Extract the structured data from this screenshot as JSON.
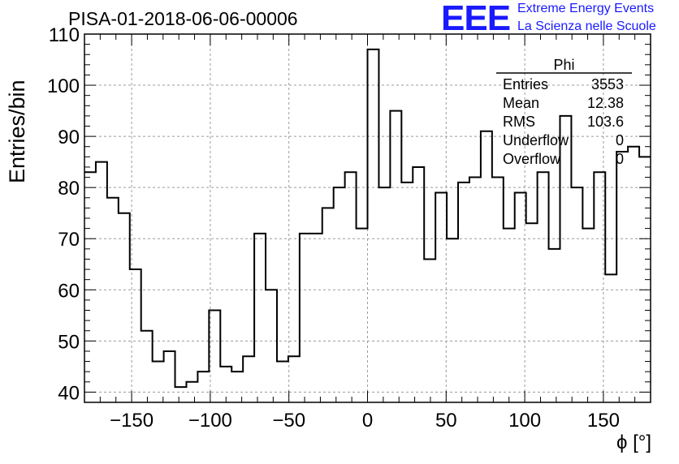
{
  "header": {
    "title": "PISA-01-2018-06-06-00006",
    "logo_text": "EEE",
    "logo_line1": "Extreme Energy Events",
    "logo_line2": "La Scienza nelle Scuole",
    "logo_color": "#1a1aff"
  },
  "stats": {
    "name": "Phi",
    "rows": [
      {
        "label": "Entries",
        "value": "3553"
      },
      {
        "label": "Mean",
        "value": "12.38"
      },
      {
        "label": "RMS",
        "value": "103.6"
      },
      {
        "label": "Underflow",
        "value": "0"
      },
      {
        "label": "Overflow",
        "value": "0"
      }
    ]
  },
  "chart_data": {
    "type": "histogram",
    "title": "PISA-01-2018-06-06-00006",
    "xlabel": "ϕ [°]",
    "ylabel": "Entries/bin",
    "xlim": [
      -180,
      180
    ],
    "ylim": [
      38,
      110
    ],
    "bin_width": 7.2,
    "bin_edges_start": -180,
    "values": [
      83,
      85,
      78,
      75,
      64,
      52,
      46,
      48,
      41,
      42,
      44,
      56,
      45,
      44,
      47,
      71,
      60,
      46,
      47,
      71,
      71,
      76,
      80,
      83,
      72,
      107,
      80,
      95,
      81,
      84,
      66,
      79,
      70,
      81,
      82,
      91,
      82,
      72,
      79,
      73,
      83,
      68,
      94,
      80,
      72,
      83,
      63,
      87,
      88,
      86
    ],
    "xticks": [
      -150,
      -100,
      -50,
      0,
      50,
      100,
      150
    ],
    "xtick_labels": [
      "−150",
      "−100",
      "−50",
      "0",
      "50",
      "100",
      "150"
    ],
    "yticks": [
      40,
      50,
      60,
      70,
      80,
      90,
      100,
      110
    ],
    "ytick_labels": [
      "40",
      "50",
      "60",
      "70",
      "80",
      "90",
      "100",
      "110"
    ],
    "grid": true,
    "line_color": "#000000"
  }
}
